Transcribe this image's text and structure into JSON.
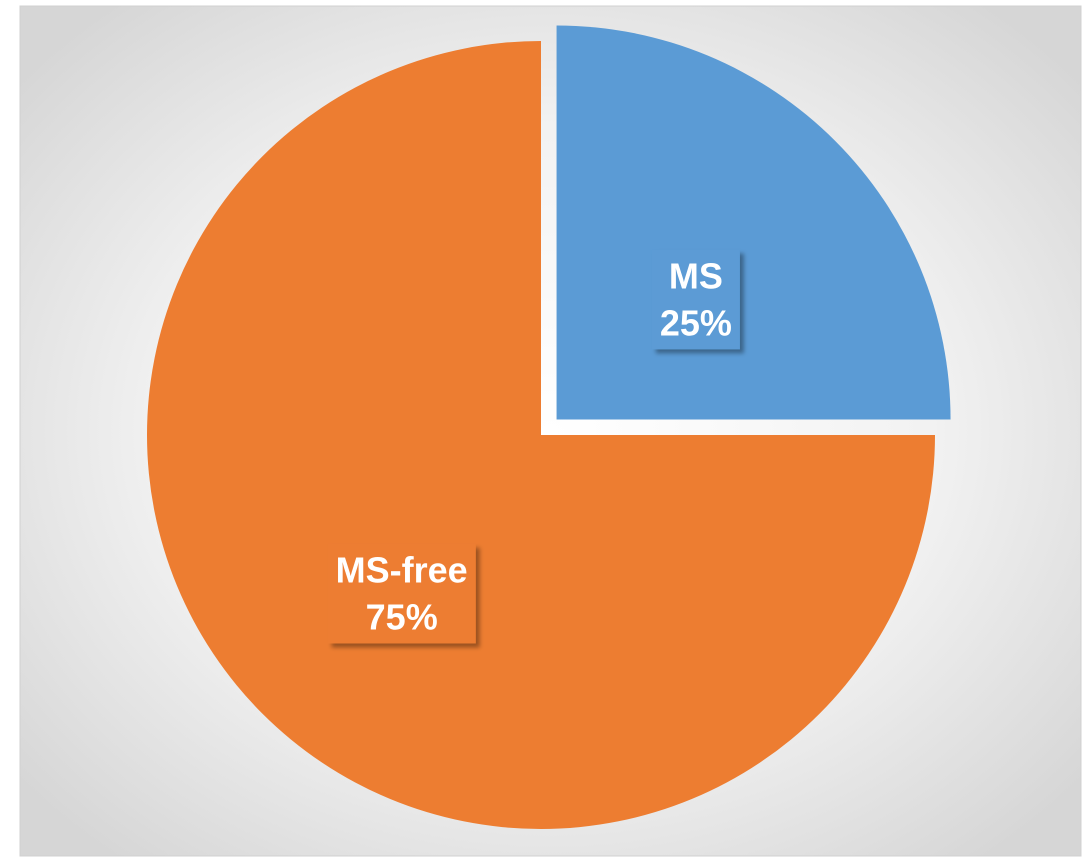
{
  "chart_data": {
    "type": "pie",
    "categories": [
      "MS",
      "MS-free"
    ],
    "values": [
      25,
      75
    ],
    "value_labels": [
      "25%",
      "75%"
    ],
    "colors": [
      "#5b9bd5",
      "#ed7d31"
    ],
    "explode": [
      true,
      false
    ]
  }
}
